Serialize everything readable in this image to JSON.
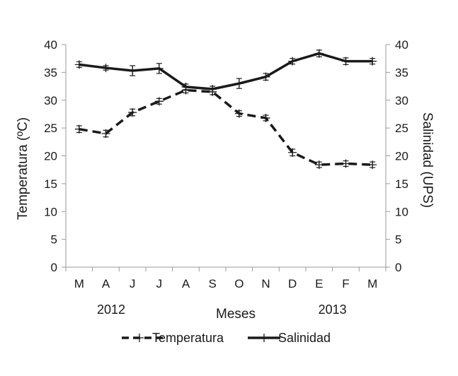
{
  "chart_data": {
    "type": "line",
    "categories": [
      "M",
      "A",
      "J",
      "J",
      "A",
      "S",
      "O",
      "N",
      "D",
      "E",
      "F",
      "M"
    ],
    "years": [
      {
        "label": "2012",
        "category_index": 1.2
      },
      {
        "label": "2013",
        "category_index": 9.5
      }
    ],
    "xlabel": "Meses",
    "ylabel_left": "Temperatura (ºC)",
    "ylabel_right": "Salinidad (UPS)",
    "ylim_left": [
      0,
      40
    ],
    "ylim_right": [
      0,
      40
    ],
    "yticks_left": [
      "0",
      "5",
      "10",
      "15",
      "20",
      "25",
      "30",
      "35",
      "40"
    ],
    "yticks_right": [
      "0",
      "5",
      "10",
      "15",
      "20",
      "25",
      "30",
      "35",
      "40"
    ],
    "grid": false,
    "legend_position": "bottom",
    "series": [
      {
        "name": "Temperatura",
        "axis": "left",
        "style": "dashed",
        "values": [
          24.8,
          24.0,
          27.8,
          29.8,
          31.8,
          31.5,
          27.6,
          26.8,
          20.6,
          18.4,
          18.6,
          18.4
        ],
        "errors": [
          0.6,
          0.6,
          0.6,
          0.5,
          0.5,
          0.5,
          0.5,
          0.5,
          0.6,
          0.5,
          0.5,
          0.5
        ]
      },
      {
        "name": "Salinidad",
        "axis": "right",
        "style": "solid",
        "values": [
          36.4,
          35.8,
          35.3,
          35.7,
          32.4,
          32.0,
          33.0,
          34.2,
          37.0,
          38.4,
          37.0,
          37.0
        ],
        "errors": [
          0.5,
          0.4,
          0.9,
          0.9,
          0.5,
          0.5,
          0.9,
          0.6,
          0.5,
          0.6,
          0.6,
          0.5
        ]
      }
    ]
  }
}
